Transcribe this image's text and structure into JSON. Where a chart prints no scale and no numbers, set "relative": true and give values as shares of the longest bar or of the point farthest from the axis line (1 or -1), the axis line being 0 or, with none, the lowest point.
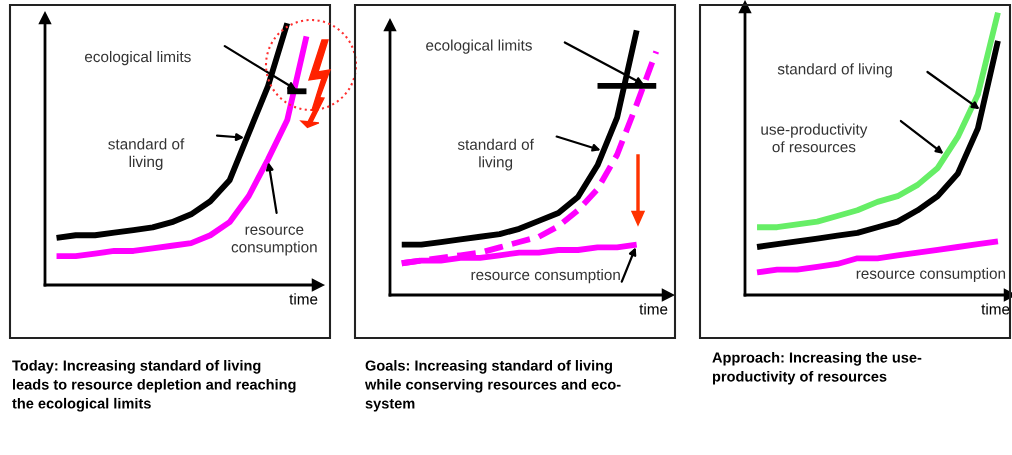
{
  "chart_data": [
    {
      "type": "line",
      "relative": true,
      "xlabel": "time",
      "title": "Today: Increasing standard of living\nleads to resource depletion and reaching\nthe ecological limits",
      "categories": [
        null,
        null,
        null,
        null,
        null,
        null,
        null,
        null,
        null,
        null,
        null,
        null,
        null,
        null
      ],
      "series": [
        {
          "color": "#000000",
          "values": [
            0.18,
            0.19,
            0.19,
            0.2,
            0.21,
            0.22,
            0.24,
            0.27,
            0.32,
            0.4,
            0.58,
            0.76,
            1,
            null
          ]
        },
        {
          "color": "#ff00ff",
          "values": [
            0.11,
            0.11,
            0.12,
            0.13,
            0.13,
            0.14,
            0.15,
            0.16,
            0.19,
            0.24,
            0.34,
            0.48,
            0.63,
            0.95
          ]
        },
        {
          "color": "#000000",
          "values": [
            null,
            null,
            null,
            null,
            null,
            null,
            null,
            null,
            null,
            null,
            null,
            null,
            0.74,
            0.74
          ]
        }
      ],
      "annotations": [
        "ecological limits",
        "standard of\nliving",
        "resource\nconsumption"
      ]
    },
    {
      "type": "line",
      "relative": true,
      "xlabel": "time",
      "title": "Goals: Increasing standard of living\nwhile conserving resources and eco-\nsystem",
      "categories": [
        null,
        null,
        null,
        null,
        null,
        null,
        null,
        null,
        null,
        null,
        null,
        null,
        null,
        null
      ],
      "series": [
        {
          "color": "#000000",
          "values": [
            0.19,
            0.19,
            0.2,
            0.21,
            0.22,
            0.23,
            0.25,
            0.28,
            0.31,
            0.37,
            0.49,
            0.67,
            1,
            null
          ]
        },
        {
          "color": "#ff00ff",
          "line_style": "dashed",
          "values": [
            0.12,
            0.13,
            0.14,
            0.15,
            0.16,
            0.18,
            0.2,
            0.22,
            0.26,
            0.32,
            0.4,
            0.53,
            0.72,
            0.92
          ]
        },
        {
          "color": "#ff00ff",
          "values": [
            0.12,
            0.13,
            0.13,
            0.14,
            0.14,
            0.15,
            0.16,
            0.16,
            0.17,
            0.17,
            0.18,
            0.18,
            0.19,
            null
          ]
        },
        {
          "color": "#000000",
          "values": [
            null,
            null,
            null,
            null,
            null,
            null,
            null,
            null,
            null,
            null,
            0.79,
            0.79,
            0.79,
            0.79
          ]
        }
      ],
      "annotations": [
        "ecological limits",
        "standard of\nliving",
        "resource consumption"
      ]
    },
    {
      "type": "line",
      "relative": true,
      "xlabel": "time",
      "title": "Approach: Increasing the use-\nproductivity of resources",
      "categories": [
        null,
        null,
        null,
        null,
        null,
        null,
        null,
        null,
        null,
        null,
        null,
        null,
        null
      ],
      "series": [
        {
          "color": "#66ee66",
          "values": [
            0.24,
            0.24,
            0.25,
            0.26,
            0.28,
            0.3,
            0.33,
            0.35,
            0.39,
            0.45,
            0.56,
            0.71,
            1
          ]
        },
        {
          "color": "#000000",
          "values": [
            0.17,
            0.18,
            0.19,
            0.2,
            0.21,
            0.22,
            0.24,
            0.26,
            0.3,
            0.35,
            0.43,
            0.59,
            0.9
          ]
        },
        {
          "color": "#ff00ff",
          "values": [
            0.08,
            0.09,
            0.09,
            0.1,
            0.11,
            0.13,
            0.13,
            0.14,
            0.15,
            0.16,
            0.17,
            0.18,
            0.19
          ]
        }
      ],
      "annotations": [
        "standard of living",
        "use-productivity\nof resources",
        "resource consumption"
      ]
    }
  ]
}
